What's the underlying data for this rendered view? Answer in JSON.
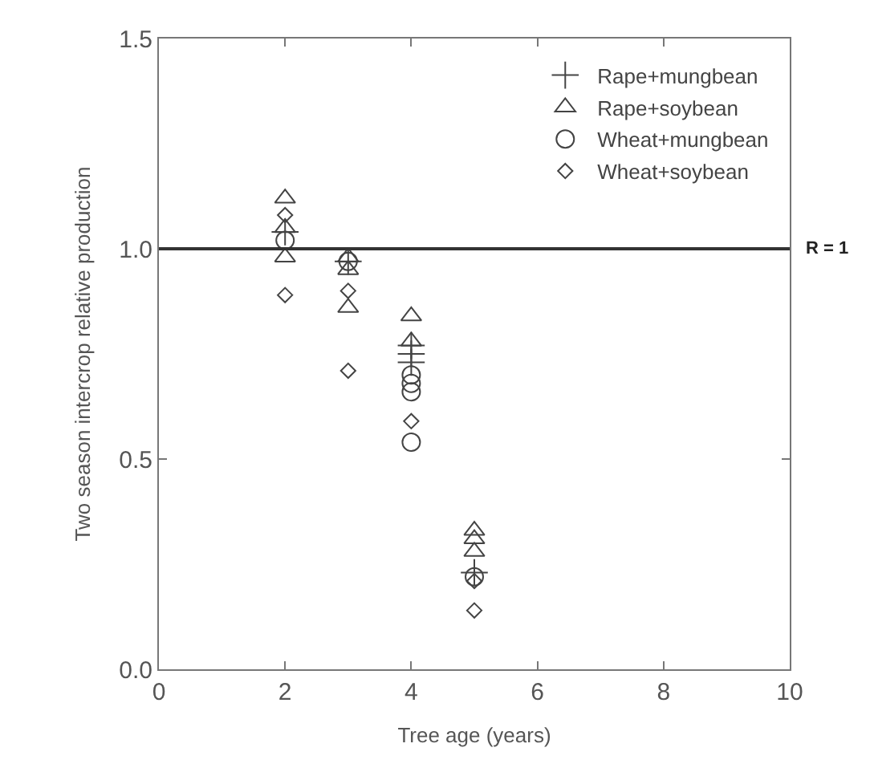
{
  "chart_data": {
    "type": "scatter",
    "xlabel": "Tree age (years)",
    "ylabel": "Two season intercrop relative production",
    "xlim": [
      0,
      10
    ],
    "xticks": [
      0,
      2,
      4,
      6,
      8,
      10
    ],
    "ylim": [
      0,
      1.5
    ],
    "yticks": [
      {
        "value": 0,
        "label": "0.0"
      },
      {
        "value": 0.5,
        "label": "0.5"
      },
      {
        "value": 1,
        "label": "1.0"
      },
      {
        "value": 1.5,
        "label": "1.5"
      }
    ],
    "grid": false,
    "legend": "top right",
    "ref_lines": [
      {
        "axis": "y",
        "value": 1,
        "label": "R = 1",
        "color": "#333333"
      }
    ],
    "series": [
      {
        "name": "Rape+mungbean",
        "color": "#444444",
        "marker": "cross",
        "x": [
          2,
          3,
          4,
          4,
          4,
          5
        ],
        "values": [
          1.04,
          0.97,
          0.77,
          0.75,
          0.73,
          0.23
        ]
      },
      {
        "name": "Rape+soybean",
        "color": "#444444",
        "marker": "triangle",
        "x": [
          2,
          2,
          2,
          3,
          3,
          3,
          4,
          4,
          5,
          5,
          5
        ],
        "values": [
          1.12,
          1.05,
          0.98,
          0.98,
          0.95,
          0.86,
          0.84,
          0.78,
          0.33,
          0.31,
          0.28
        ]
      },
      {
        "name": "Wheat+mungbean",
        "color": "#444444",
        "marker": "circle",
        "x": [
          2,
          3,
          4,
          4,
          4,
          4,
          5
        ],
        "values": [
          1.02,
          0.97,
          0.7,
          0.68,
          0.66,
          0.54,
          0.22
        ]
      },
      {
        "name": "Wheat+soybean",
        "color": "#444444",
        "marker": "diamond",
        "x": [
          2,
          2,
          3,
          3,
          4,
          5,
          5
        ],
        "values": [
          1.08,
          0.89,
          0.9,
          0.71,
          0.59,
          0.21,
          0.14
        ]
      }
    ]
  }
}
